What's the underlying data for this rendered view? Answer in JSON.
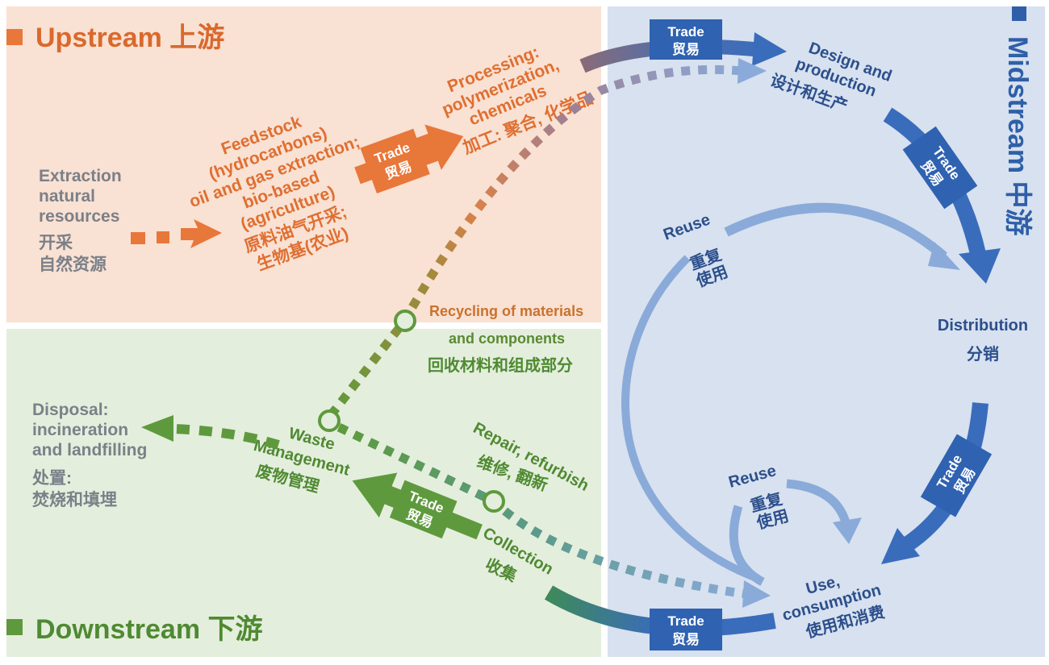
{
  "sections": {
    "upstream": {
      "label": "Upstream 上游",
      "color": "#df6f31"
    },
    "midstream": {
      "label": "Midstream 中游",
      "color": "#2f5fa8"
    },
    "downstream": {
      "label": "Downstream 下游",
      "color": "#4f8a32"
    }
  },
  "nodes": {
    "extraction": {
      "lines": [
        "Extraction",
        "natural",
        "resources"
      ],
      "zh": [
        "开采",
        "自然资源"
      ]
    },
    "feedstock": {
      "lines": [
        "Feedstock",
        "(hydrocarbons)",
        "oil and gas extraction;",
        "bio-based",
        "(agriculture)"
      ],
      "zh": [
        "原料油气开采;",
        "生物基(农业)"
      ]
    },
    "processing": {
      "lines": [
        "Processing:",
        "polymerization,",
        "chemicals"
      ],
      "zh": "加工: 聚合, 化学品"
    },
    "design": {
      "lines": [
        "Design and",
        "production"
      ],
      "zh": "设计和生产"
    },
    "distribution": {
      "label": "Distribution",
      "zh": "分销"
    },
    "use": {
      "lines": [
        "Use,",
        "consumption"
      ],
      "zh": "使用和消费"
    },
    "collection": {
      "label": "Collection",
      "zh": "收集"
    },
    "waste": {
      "lines": [
        "Waste",
        "Management"
      ],
      "zh": "废物管理"
    },
    "disposal": {
      "lines": [
        "Disposal:",
        "incineration",
        "and landfilling"
      ],
      "zh": [
        "处置:",
        "焚烧和填埋"
      ]
    },
    "recycling": {
      "lines": [
        "Recycling of materials",
        "and components"
      ],
      "zh": "回收材料和组成部分"
    },
    "repair": {
      "label": "Repair, refurbish",
      "zh": "维修, 翻新"
    },
    "reuse_outer": {
      "label": "Reuse",
      "zh": [
        "重复",
        "使用"
      ]
    },
    "reuse_inner": {
      "label": "Reuse",
      "zh": [
        "重复",
        "使用"
      ]
    }
  },
  "trade": {
    "label": "Trade",
    "zh": "贸易"
  },
  "colors": {
    "upstream_bg": "#f9e1d3",
    "midstream_bg": "#d7e1ef",
    "downstream_bg": "#e4eedd",
    "orange": "#e8773a",
    "green": "#5e9a3d",
    "blue": "#3a6cbc",
    "light_blue": "#8aaad9"
  }
}
